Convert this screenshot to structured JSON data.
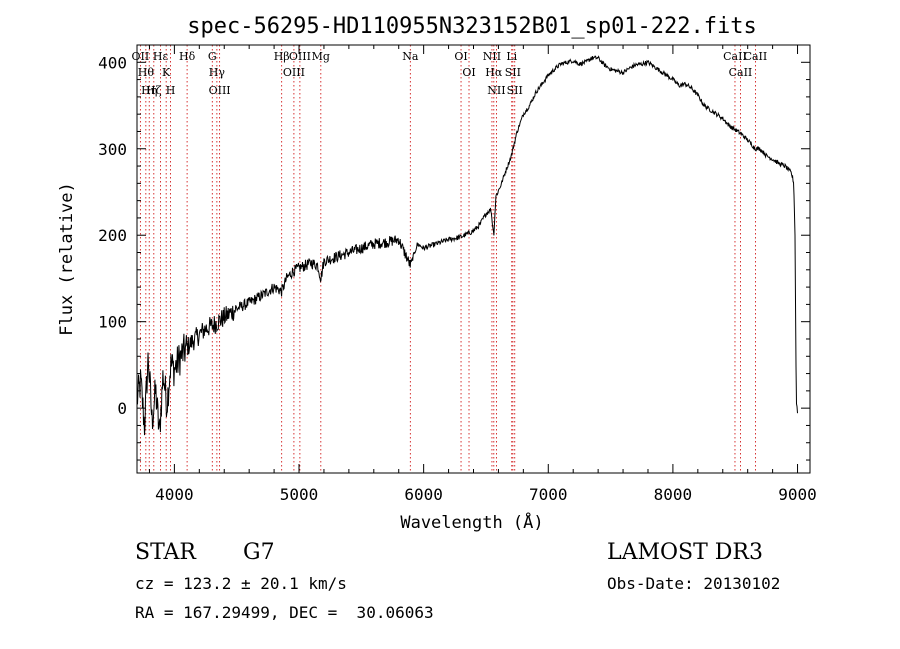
{
  "chart_data": {
    "type": "line",
    "title": "spec-56295-HD110955N323152B01_sp01-222.fits",
    "xlabel": "Wavelength (Å)",
    "ylabel": "Flux (relative)",
    "xlim": [
      3700,
      9100
    ],
    "ylim": [
      -75,
      420
    ],
    "xticks": [
      4000,
      5000,
      6000,
      7000,
      8000,
      9000
    ],
    "yticks": [
      0,
      100,
      200,
      300,
      400
    ],
    "grid": false,
    "series": [
      {
        "name": "flux",
        "x": [
          3700,
          3730,
          3760,
          3790,
          3820,
          3850,
          3880,
          3910,
          3940,
          3970,
          4000,
          4050,
          4100,
          4150,
          4200,
          4250,
          4300,
          4350,
          4400,
          4450,
          4500,
          4600,
          4700,
          4800,
          4861,
          4900,
          4950,
          5000,
          5050,
          5100,
          5150,
          5175,
          5200,
          5300,
          5400,
          5500,
          5600,
          5700,
          5800,
          5893,
          5950,
          6000,
          6100,
          6200,
          6300,
          6400,
          6450,
          6500,
          6540,
          6563,
          6580,
          6620,
          6660,
          6700,
          6750,
          6800,
          6850,
          6900,
          6950,
          7000,
          7050,
          7100,
          7150,
          7200,
          7250,
          7300,
          7350,
          7400,
          7450,
          7500,
          7550,
          7600,
          7650,
          7700,
          7750,
          7800,
          7850,
          7900,
          7950,
          8000,
          8050,
          8100,
          8150,
          8200,
          8250,
          8300,
          8350,
          8400,
          8450,
          8500,
          8542,
          8600,
          8662,
          8700,
          8750,
          8800,
          8850,
          8900,
          8950,
          8970,
          8980,
          8990,
          9000
        ],
        "values": [
          10,
          30,
          -20,
          60,
          -15,
          20,
          -30,
          40,
          5,
          50,
          45,
          60,
          70,
          78,
          85,
          92,
          95,
          100,
          105,
          110,
          115,
          122,
          130,
          140,
          135,
          150,
          158,
          162,
          165,
          168,
          165,
          150,
          170,
          175,
          180,
          185,
          190,
          192,
          195,
          165,
          190,
          185,
          190,
          195,
          198,
          205,
          212,
          225,
          230,
          200,
          245,
          258,
          275,
          290,
          320,
          340,
          350,
          365,
          375,
          385,
          392,
          398,
          400,
          402,
          398,
          400,
          405,
          405,
          397,
          392,
          390,
          388,
          393,
          397,
          398,
          400,
          395,
          390,
          385,
          380,
          373,
          375,
          370,
          362,
          350,
          345,
          340,
          335,
          327,
          322,
          318,
          310,
          300,
          300,
          292,
          288,
          283,
          280,
          272,
          260,
          200,
          10,
          -5
        ]
      }
    ],
    "line_markers": [
      {
        "wavelength": 3727,
        "label": "OII"
      },
      {
        "wavelength": 3771,
        "label": "Hθ"
      },
      {
        "wavelength": 3798,
        "label": "Hη"
      },
      {
        "wavelength": 3835,
        "label": "Hζ"
      },
      {
        "wavelength": 3889,
        "label": "Hε"
      },
      {
        "wavelength": 3934,
        "label": "K"
      },
      {
        "wavelength": 3969,
        "label": "H"
      },
      {
        "wavelength": 4102,
        "label": "Hδ"
      },
      {
        "wavelength": 4304,
        "label": "G"
      },
      {
        "wavelength": 4341,
        "label": "Hγ"
      },
      {
        "wavelength": 4363,
        "label": "OIII"
      },
      {
        "wavelength": 4861,
        "label": "Hβ"
      },
      {
        "wavelength": 4959,
        "label": "OIII"
      },
      {
        "wavelength": 5007,
        "label": "OIII"
      },
      {
        "wavelength": 5175,
        "label": "Mg"
      },
      {
        "wavelength": 5893,
        "label": "Na"
      },
      {
        "wavelength": 6300,
        "label": "OI"
      },
      {
        "wavelength": 6364,
        "label": "OI"
      },
      {
        "wavelength": 6548,
        "label": "NII"
      },
      {
        "wavelength": 6563,
        "label": "Hα"
      },
      {
        "wavelength": 6584,
        "label": "NII"
      },
      {
        "wavelength": 6707,
        "label": "Li"
      },
      {
        "wavelength": 6716,
        "label": "SII"
      },
      {
        "wavelength": 6731,
        "label": "SII"
      },
      {
        "wavelength": 8498,
        "label": "CaII"
      },
      {
        "wavelength": 8542,
        "label": "CaII"
      },
      {
        "wavelength": 8662,
        "label": "CaII"
      }
    ],
    "line_color": "#000000",
    "marker_color": "#cc0000"
  },
  "info": {
    "class": "STAR",
    "subclass": "G7",
    "survey": "LAMOST DR3",
    "cz": "cz = 123.2 ± 20.1 km/s",
    "obs_date": "Obs-Date: 20130102",
    "radec": "RA = 167.29499, DEC =  30.06063"
  }
}
